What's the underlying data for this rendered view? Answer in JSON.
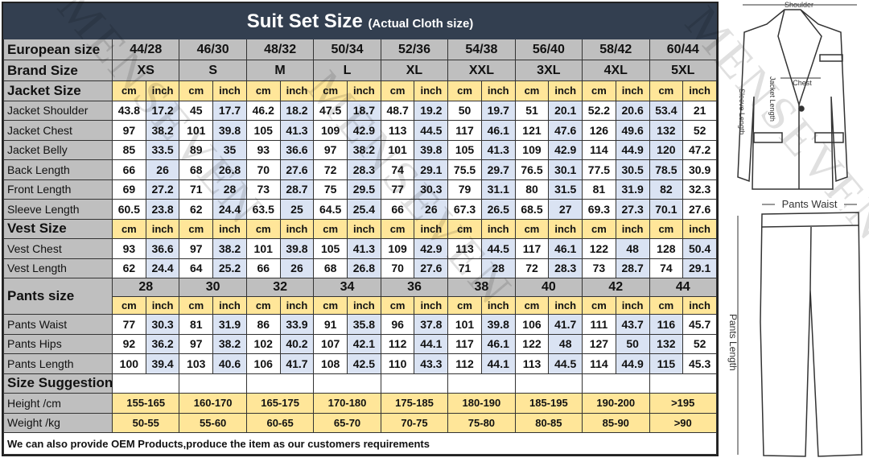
{
  "title": {
    "main": "Suit Set Size",
    "sub": "(Actual Cloth size)"
  },
  "european_label": "European size",
  "brand_label": "Brand Size",
  "european_sizes": [
    "44/28",
    "46/30",
    "48/32",
    "50/34",
    "52/36",
    "54/38",
    "56/40",
    "58/42",
    "60/44"
  ],
  "brand_sizes": [
    "XS",
    "S",
    "M",
    "L",
    "XL",
    "XXL",
    "3XL",
    "4XL",
    "5XL"
  ],
  "units": {
    "cm": "cm",
    "inch": "inch"
  },
  "jacket": {
    "label": "Jacket Size",
    "rows": [
      {
        "name": "Jacket Shoulder",
        "values": [
          [
            43.8,
            17.2
          ],
          [
            45,
            17.7
          ],
          [
            46.2,
            18.2
          ],
          [
            47.5,
            18.7
          ],
          [
            48.7,
            19.2
          ],
          [
            50,
            19.7
          ],
          [
            51,
            20.1
          ],
          [
            52.2,
            20.6
          ],
          [
            53.4,
            21
          ]
        ]
      },
      {
        "name": "Jacket Chest",
        "values": [
          [
            97,
            38.2
          ],
          [
            101,
            39.8
          ],
          [
            105,
            41.3
          ],
          [
            109,
            42.9
          ],
          [
            113,
            44.5
          ],
          [
            117,
            46.1
          ],
          [
            121,
            47.6
          ],
          [
            126,
            49.6
          ],
          [
            132,
            52
          ]
        ]
      },
      {
        "name": "Jacket Belly",
        "values": [
          [
            85,
            33.5
          ],
          [
            89,
            35
          ],
          [
            93,
            36.6
          ],
          [
            97,
            38.2
          ],
          [
            101,
            39.8
          ],
          [
            105,
            41.3
          ],
          [
            109,
            42.9
          ],
          [
            114,
            44.9
          ],
          [
            120,
            47.2
          ]
        ]
      },
      {
        "name": "Back Length",
        "values": [
          [
            66,
            26
          ],
          [
            68,
            26.8
          ],
          [
            70,
            27.6
          ],
          [
            72,
            28.3
          ],
          [
            74,
            29.1
          ],
          [
            75.5,
            29.7
          ],
          [
            76.5,
            30.1
          ],
          [
            77.5,
            30.5
          ],
          [
            78.5,
            30.9
          ]
        ]
      },
      {
        "name": "Front Length",
        "values": [
          [
            69,
            27.2
          ],
          [
            71,
            28
          ],
          [
            73,
            28.7
          ],
          [
            75,
            29.5
          ],
          [
            77,
            30.3
          ],
          [
            79,
            31.1
          ],
          [
            80,
            31.5
          ],
          [
            81,
            31.9
          ],
          [
            82,
            32.3
          ]
        ]
      },
      {
        "name": "Sleeve Length",
        "values": [
          [
            60.5,
            23.8
          ],
          [
            62,
            24.4
          ],
          [
            63.5,
            25
          ],
          [
            64.5,
            25.4
          ],
          [
            66,
            26
          ],
          [
            67.3,
            26.5
          ],
          [
            68.5,
            27
          ],
          [
            69.3,
            27.3
          ],
          [
            70.1,
            27.6
          ]
        ]
      }
    ]
  },
  "vest": {
    "label": "Vest Size",
    "rows": [
      {
        "name": "Vest Chest",
        "values": [
          [
            93,
            36.6
          ],
          [
            97,
            38.2
          ],
          [
            101,
            39.8
          ],
          [
            105,
            41.3
          ],
          [
            109,
            42.9
          ],
          [
            113,
            44.5
          ],
          [
            117,
            46.1
          ],
          [
            122,
            48
          ],
          [
            128,
            50.4
          ]
        ]
      },
      {
        "name": "Vest Length",
        "values": [
          [
            62,
            24.4
          ],
          [
            64,
            25.2
          ],
          [
            66,
            26
          ],
          [
            68,
            26.8
          ],
          [
            70,
            27.6
          ],
          [
            71,
            28
          ],
          [
            72,
            28.3
          ],
          [
            73,
            28.7
          ],
          [
            74,
            29.1
          ]
        ]
      }
    ]
  },
  "pants": {
    "label": "Pants size",
    "sizes": [
      "28",
      "30",
      "32",
      "34",
      "36",
      "38",
      "40",
      "42",
      "44"
    ],
    "rows": [
      {
        "name": "Pants Waist",
        "values": [
          [
            77,
            30.3
          ],
          [
            81,
            31.9
          ],
          [
            86,
            33.9
          ],
          [
            91,
            35.8
          ],
          [
            96,
            37.8
          ],
          [
            101,
            39.8
          ],
          [
            106,
            41.7
          ],
          [
            111,
            43.7
          ],
          [
            116,
            45.7
          ]
        ]
      },
      {
        "name": "Pants Hips",
        "values": [
          [
            92,
            36.2
          ],
          [
            97,
            38.2
          ],
          [
            102,
            40.2
          ],
          [
            107,
            42.1
          ],
          [
            112,
            44.1
          ],
          [
            117,
            46.1
          ],
          [
            122,
            48
          ],
          [
            127,
            50
          ],
          [
            132,
            52
          ]
        ]
      },
      {
        "name": "Pants Length",
        "values": [
          [
            100,
            39.4
          ],
          [
            103,
            40.6
          ],
          [
            106,
            41.7
          ],
          [
            108,
            42.5
          ],
          [
            110,
            43.3
          ],
          [
            112,
            44.1
          ],
          [
            113,
            44.5
          ],
          [
            114,
            44.9
          ],
          [
            115,
            45.3
          ]
        ]
      }
    ]
  },
  "suggestion": {
    "label": "Size Suggestion",
    "height_label": "Height /cm",
    "heights": [
      "155-165",
      "160-170",
      "165-175",
      "170-180",
      "175-185",
      "180-190",
      "185-195",
      "190-200",
      ">195"
    ],
    "weight_label": "Weight /kg",
    "weights": [
      "50-55",
      "55-60",
      "60-65",
      "65-70",
      "70-75",
      "75-80",
      "80-85",
      "85-90",
      ">90"
    ]
  },
  "footer": "We can also provide OEM Products,produce the item as our customers requirements",
  "watermark": "MENSEVEN",
  "diagram": {
    "shoulder": "Shoulder",
    "chest": "Chest",
    "sleeve_length": "Sleeve Length",
    "jacket_length": "Jacket Length",
    "pants_waist": "Pants Waist",
    "pants_length": "Pants Length"
  },
  "colors": {
    "title_bg": "#333f50",
    "label_bg": "#bfbfbf",
    "unit_bg": "#ffe699",
    "inch_bg": "#dae3f3"
  }
}
